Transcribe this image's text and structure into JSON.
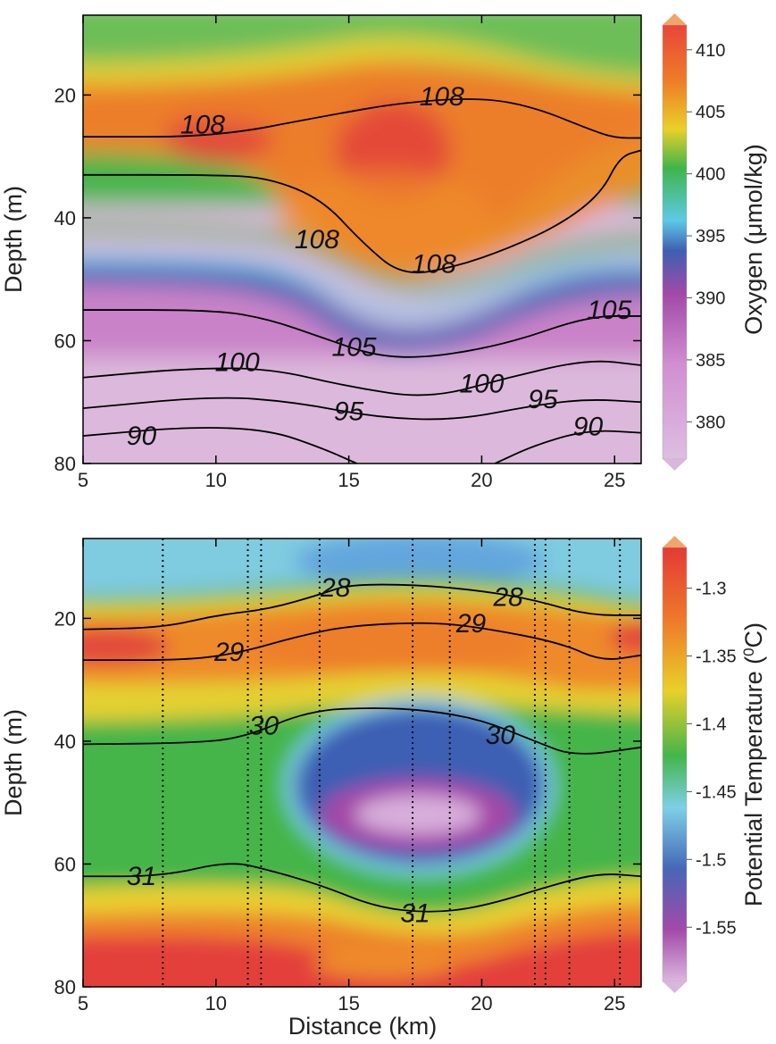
{
  "figure": {
    "xlabel": "Distance (km)"
  },
  "chart_data": [
    {
      "type": "heatmap",
      "xlabel": "",
      "ylabel": "Depth (m)",
      "colorbar_label": "Oxygen (μmol/kg)",
      "xlim": [
        5,
        26
      ],
      "ylim": [
        80,
        7
      ],
      "x_ticks": [
        5,
        10,
        15,
        20,
        25
      ],
      "y_ticks": [
        20,
        40,
        60,
        80
      ],
      "colorbar": {
        "min": 377,
        "max": 412,
        "ticks": [
          410,
          405,
          400,
          395,
          390,
          385,
          380
        ]
      },
      "contour_lines": [
        {
          "label": "108",
          "label_at": [
            [
              9.5,
              24.8
            ],
            [
              18.5,
              20.2
            ],
            [
              13.8,
              43.5
            ],
            [
              18.2,
              47.5
            ]
          ],
          "lines": [
            [
              [
                5,
                26.8
              ],
              [
                10,
                26.8
              ],
              [
                14,
                23.5
              ],
              [
                17,
                21.2
              ],
              [
                20,
                20.4
              ],
              [
                22,
                22
              ],
              [
                24,
                25.5
              ],
              [
                25,
                27
              ],
              [
                26,
                27
              ]
            ],
            [
              [
                5,
                33
              ],
              [
                10,
                33
              ],
              [
                12,
                33.5
              ],
              [
                14,
                37
              ],
              [
                15.5,
                44
              ],
              [
                17,
                49.5
              ],
              [
                19,
                48
              ],
              [
                21,
                45
              ],
              [
                23,
                41
              ],
              [
                24.5,
                36
              ],
              [
                25.2,
                30
              ],
              [
                26,
                29
              ]
            ]
          ]
        },
        {
          "label": "105",
          "label_at": [
            [
              15.2,
              61
            ],
            [
              24.8,
              55
            ]
          ],
          "lines": [
            [
              [
                5,
                55
              ],
              [
                10,
                55
              ],
              [
                12,
                56.5
              ],
              [
                14,
                59.5
              ],
              [
                16,
                62.5
              ],
              [
                18,
                62.8
              ],
              [
                21,
                60.5
              ],
              [
                24,
                56
              ],
              [
                26,
                56
              ]
            ]
          ]
        },
        {
          "label": "100",
          "label_at": [
            [
              10.8,
              63.5
            ],
            [
              20,
              67
            ]
          ],
          "lines": [
            [
              [
                5,
                66
              ],
              [
                9,
                64.5
              ],
              [
                12,
                64.5
              ],
              [
                15,
                67.5
              ],
              [
                18,
                69.5
              ],
              [
                21,
                66
              ],
              [
                24,
                63
              ],
              [
                26,
                64
              ]
            ]
          ]
        },
        {
          "label": "95",
          "label_at": [
            [
              15,
              71.5
            ],
            [
              22.3,
              69.5
            ]
          ],
          "lines": [
            [
              [
                5,
                71
              ],
              [
                10,
                69
              ],
              [
                13,
                70
              ],
              [
                16,
                72.5
              ],
              [
                19,
                73
              ],
              [
                22,
                70.5
              ],
              [
                24,
                69.5
              ],
              [
                26,
                70
              ]
            ]
          ]
        },
        {
          "label": "90",
          "label_at": [
            [
              7.2,
              75.5
            ],
            [
              24,
              74
            ]
          ],
          "lines": [
            [
              [
                5,
                75.5
              ],
              [
                9,
                74
              ],
              [
                12,
                74.5
              ],
              [
                14,
                77.5
              ],
              [
                15.3,
                80
              ]
            ],
            [
              [
                20.5,
                80
              ],
              [
                22,
                77
              ],
              [
                24,
                74.5
              ],
              [
                26,
                75
              ]
            ]
          ]
        }
      ]
    },
    {
      "type": "heatmap",
      "xlabel": "Distance (km)",
      "ylabel": "Depth (m)",
      "colorbar_label": "Potential Temperature (°C)",
      "colorbar_label_parts": [
        "Potential Temperature (",
        "0",
        "C)"
      ],
      "xlim": [
        5,
        26
      ],
      "ylim": [
        80,
        7
      ],
      "x_ticks": [
        5,
        10,
        15,
        20,
        25
      ],
      "y_ticks": [
        20,
        40,
        60,
        80
      ],
      "colorbar": {
        "min": -1.59,
        "max": -1.27,
        "ticks": [
          "-1.3",
          "-1.35",
          "-1.4",
          "-1.45",
          "-1.5",
          "-1.55"
        ]
      },
      "station_lines_x": [
        8.0,
        11.2,
        11.7,
        13.9,
        17.4,
        18.8,
        22.0,
        22.4,
        23.3,
        25.2
      ],
      "contour_lines": [
        {
          "label": "28",
          "label_at": [
            [
              14.5,
              15
            ],
            [
              21,
              16.5
            ]
          ],
          "lines": [
            [
              [
                5,
                21.8
              ],
              [
                8,
                21.5
              ],
              [
                10,
                19.5
              ],
              [
                12,
                18.5
              ],
              [
                14,
                16
              ],
              [
                15,
                14.5
              ],
              [
                17.5,
                14.5
              ],
              [
                20,
                15.5
              ],
              [
                22,
                17
              ],
              [
                24,
                19.5
              ],
              [
                26,
                19.5
              ]
            ]
          ]
        },
        {
          "label": "29",
          "label_at": [
            [
              10.5,
              25.5
            ],
            [
              19.6,
              20.8
            ]
          ],
          "lines": [
            [
              [
                5,
                26.8
              ],
              [
                9,
                26.8
              ],
              [
                11,
                25.5
              ],
              [
                13,
                23
              ],
              [
                15,
                21.2
              ],
              [
                18,
                20.6
              ],
              [
                20,
                21.5
              ],
              [
                23,
                24
              ],
              [
                24.5,
                27
              ],
              [
                26,
                26
              ]
            ]
          ]
        },
        {
          "label": "30",
          "label_at": [
            [
              11.8,
              37.5
            ],
            [
              20.7,
              39
            ]
          ],
          "lines": [
            [
              [
                5,
                40.5
              ],
              [
                9,
                40.3
              ],
              [
                11,
                39.5
              ],
              [
                13.5,
                35
              ],
              [
                16,
                34.5
              ],
              [
                18,
                35
              ],
              [
                20,
                36.5
              ],
              [
                22,
                40
              ],
              [
                23.5,
                42.5
              ],
              [
                26,
                41
              ]
            ]
          ]
        },
        {
          "label": "31",
          "label_at": [
            [
              7.2,
              62
            ],
            [
              17.5,
              68
            ]
          ],
          "lines": [
            [
              [
                5,
                62
              ],
              [
                8,
                62
              ],
              [
                10.5,
                59.5
              ],
              [
                12,
                61
              ],
              [
                14,
                63.5
              ],
              [
                16,
                67
              ],
              [
                18,
                68
              ],
              [
                20,
                67
              ],
              [
                23,
                63
              ],
              [
                24.5,
                61.5
              ],
              [
                26,
                62
              ]
            ]
          ]
        }
      ]
    }
  ]
}
